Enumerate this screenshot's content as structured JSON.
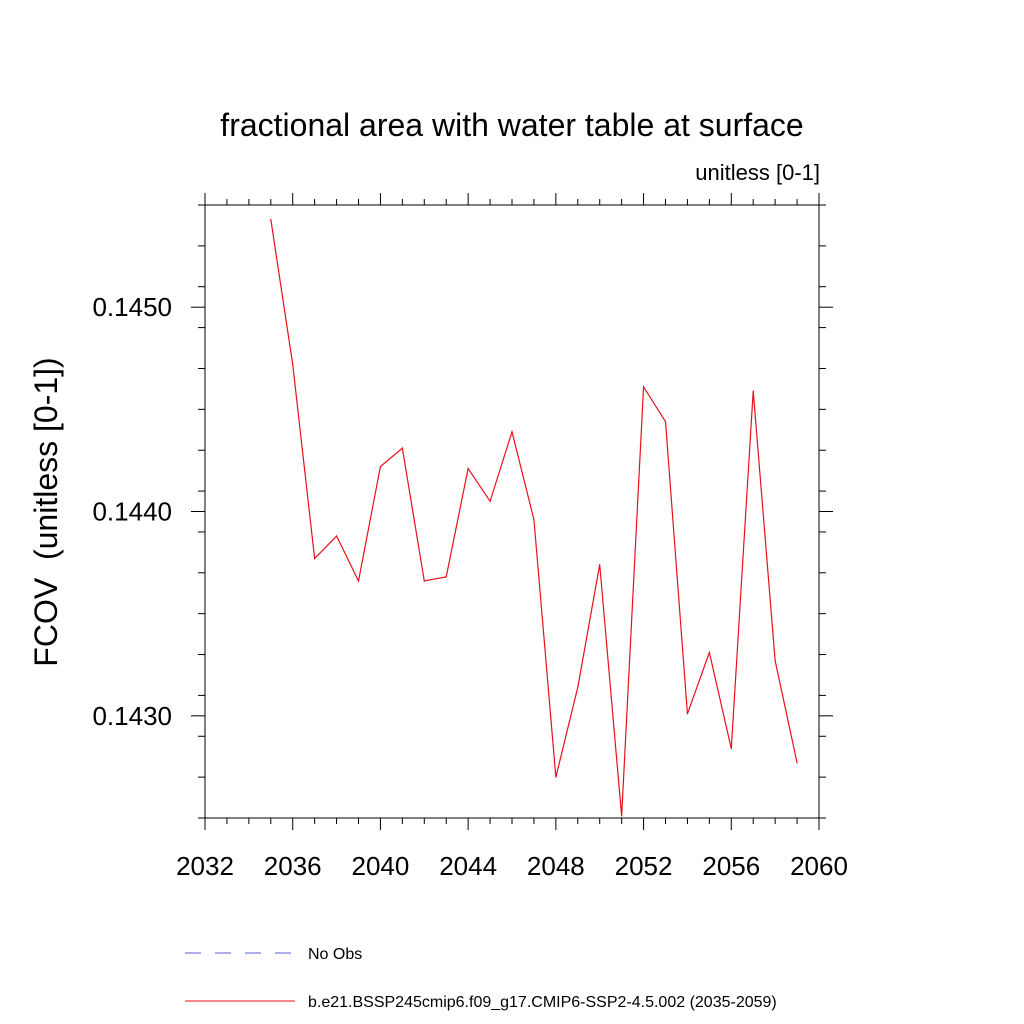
{
  "chart_data": {
    "type": "line",
    "title": "fractional area with water table at surface",
    "subtitle": "unitless [0-1]",
    "ylabel": "FCOV  (unitless [0-1])",
    "xlabel": "",
    "xlim": [
      2032,
      2060
    ],
    "ylim": [
      0.1425,
      0.1455
    ],
    "xticks": [
      "2032",
      "2036",
      "2040",
      "2044",
      "2048",
      "2052",
      "2056",
      "2060"
    ],
    "yticks": [
      "0.1430",
      "0.1440",
      "0.1450"
    ],
    "grid": false,
    "legend_position": "bottom",
    "series": [
      {
        "name": "No Obs",
        "style": "dashed",
        "color": "#5b5bd6",
        "x": [],
        "values": []
      },
      {
        "name": "b.e21.BSSP245cmip6.f09_g17.CMIP6-SSP2-4.5.002 (2035-2059)",
        "style": "solid",
        "color": "#e8101a",
        "x": [
          2035,
          2036,
          2037,
          2038,
          2039,
          2040,
          2041,
          2042,
          2043,
          2044,
          2045,
          2046,
          2047,
          2048,
          2049,
          2050,
          2051,
          2052,
          2053,
          2054,
          2055,
          2056,
          2057,
          2058,
          2059
        ],
        "values": [
          0.14543,
          0.14472,
          0.14377,
          0.14388,
          0.14366,
          0.14422,
          0.14431,
          0.14366,
          0.14368,
          0.14421,
          0.14405,
          0.14439,
          0.14396,
          0.1427,
          0.14314,
          0.14374,
          0.14251,
          0.14461,
          0.14444,
          0.14301,
          0.14331,
          0.14284,
          0.14459,
          0.14327,
          0.14277
        ]
      }
    ]
  }
}
